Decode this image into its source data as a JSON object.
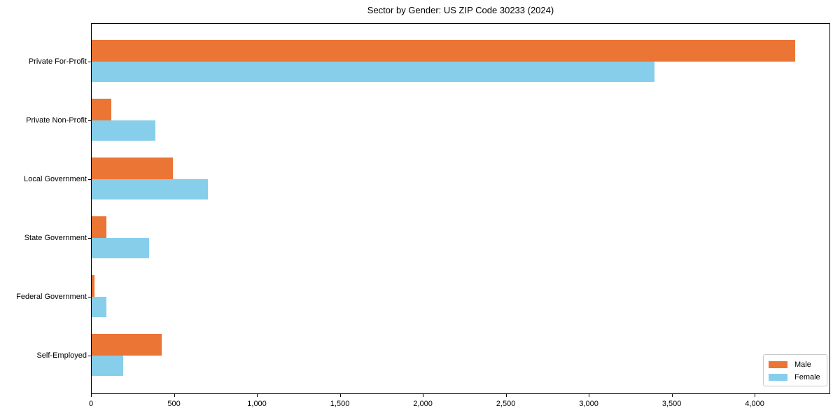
{
  "figure": {
    "background": "#ffffff",
    "spine_color": "#000000"
  },
  "colors": {
    "male": "#EB7534",
    "female": "#87CEEB",
    "text": "#000000",
    "legend_border": "#c8c8c8"
  },
  "legend": {
    "position": "lower right",
    "items": [
      {
        "label": "Male",
        "color": "#EB7534"
      },
      {
        "label": "Female",
        "color": "#87CEEB"
      }
    ]
  },
  "chart_data": {
    "type": "bar",
    "orientation": "horizontal",
    "title": "Sector by Gender: US ZIP Code 30233 (2024)",
    "categories": [
      "Private For-Profit",
      "Private Non-Profit",
      "Local Government",
      "State Government",
      "Federal Government",
      "Self-Employed"
    ],
    "series": [
      {
        "name": "Male",
        "color": "#EB7534",
        "values": [
          4240,
          120,
          490,
          90,
          15,
          420
        ]
      },
      {
        "name": "Female",
        "color": "#87CEEB",
        "values": [
          3390,
          385,
          700,
          345,
          90,
          190
        ]
      }
    ],
    "xlabel": "",
    "ylabel": "",
    "xlim": [
      0,
      4455
    ],
    "xticks": [
      0,
      500,
      1000,
      1500,
      2000,
      2500,
      3000,
      3500,
      4000
    ],
    "xtick_labels": [
      "0",
      "500",
      "1,000",
      "1,500",
      "2,000",
      "2,500",
      "3,000",
      "3,500",
      "4,000"
    ],
    "grid": false,
    "legend_position": "lower right"
  }
}
